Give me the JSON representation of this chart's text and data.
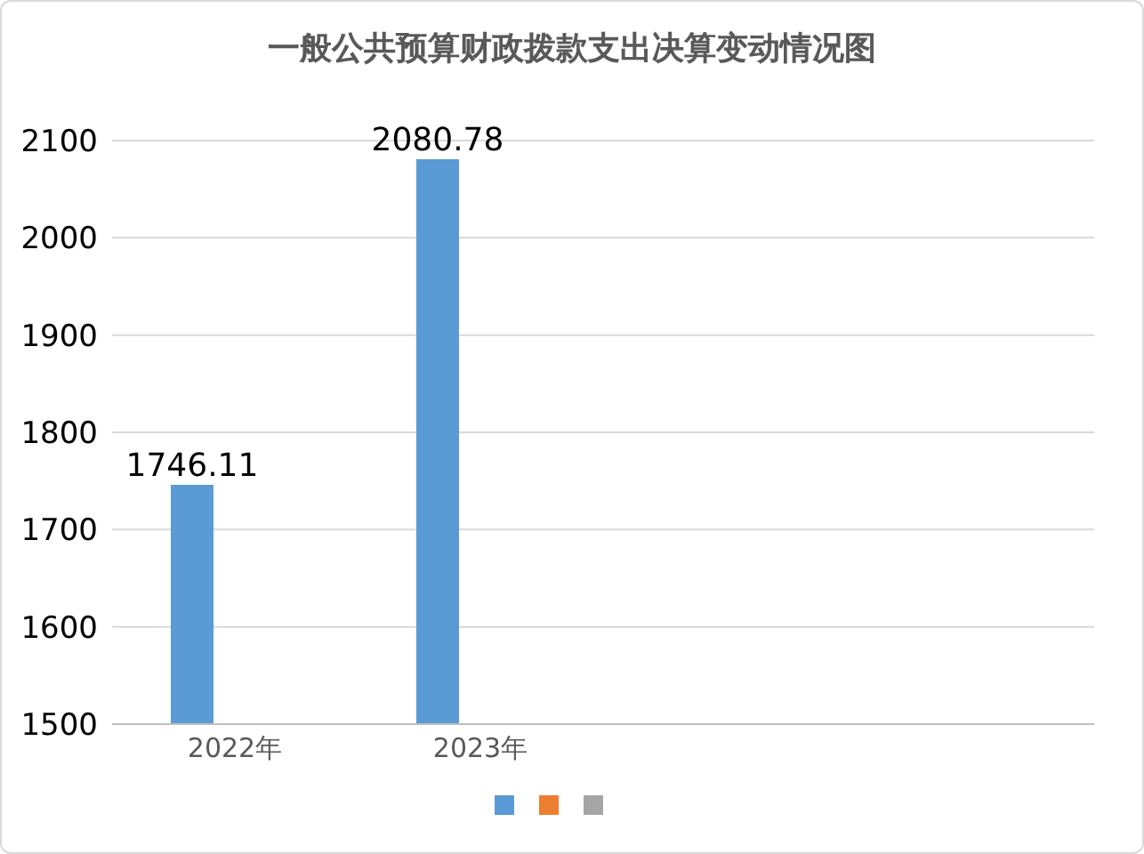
{
  "chart_data": {
    "type": "bar",
    "title": "一般公共预算财政拨款支出决算变动情况图",
    "categories": [
      "2022年",
      "2023年",
      null,
      null
    ],
    "series": [
      {
        "color": "#5b9bd5",
        "values": [
          1746.11,
          2080.78,
          null,
          null
        ]
      },
      {
        "color": "#ed7d31",
        "values": [
          null,
          null,
          null,
          null
        ]
      },
      {
        "color": "#a5a5a5",
        "values": [
          null,
          null,
          null,
          null
        ]
      }
    ],
    "ylim": [
      1500,
      2100
    ],
    "yticks": [
      1500,
      1600,
      1700,
      1800,
      1900,
      2000,
      2100
    ],
    "grid": "y",
    "data_labels": true
  }
}
